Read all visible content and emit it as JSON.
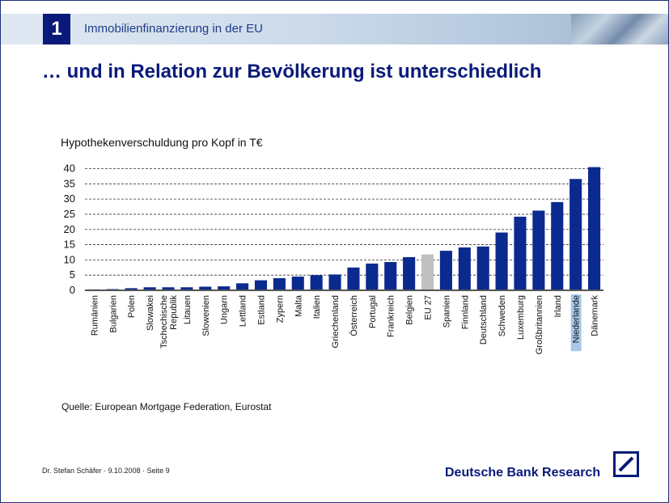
{
  "header": {
    "chapter_number": "1",
    "section_title": "Immobilienfinanzierung in der EU"
  },
  "main_title": "… und in Relation zur Bevölkerung ist unterschiedlich",
  "chart_data": {
    "type": "bar",
    "title": "Hypothekenverschuldung pro Kopf in T€",
    "xlabel": "",
    "ylabel": "",
    "categories": [
      "Rumänien",
      "Bulgarien",
      "Polen",
      "Slowakei",
      "Tschechische Republik",
      "Litauen",
      "Slowenien",
      "Ungarn",
      "Lettland",
      "Estland",
      "Zypern",
      "Malta",
      "Italien",
      "Griechenland",
      "Österreich",
      "Portugal",
      "Frankreich",
      "Belgien",
      "EU 27",
      "Spanien",
      "Finnland",
      "Deutschland",
      "Schweden",
      "Luxemburg",
      "Großbritannien",
      "Irland",
      "Niederlande",
      "Dänemark"
    ],
    "values": [
      0.3,
      0.4,
      0.7,
      1.0,
      1.0,
      1.0,
      1.2,
      1.3,
      2.3,
      3.3,
      4.0,
      4.5,
      5.0,
      5.2,
      7.5,
      8.8,
      9.3,
      10.9,
      11.8,
      13.0,
      14.1,
      14.4,
      19.0,
      24.2,
      26.2,
      29.0,
      36.6,
      40.5
    ],
    "highlight_category": "EU 27",
    "highlight_label": "Niederlande",
    "yticks": [
      0,
      5,
      10,
      15,
      20,
      25,
      30,
      35,
      40
    ],
    "ylim": [
      0,
      42
    ],
    "grid": true,
    "colors": {
      "bar": "#0b2a8f",
      "highlight_bar": "#c0c0c0",
      "label_highlight_bg": "#a8c8e8"
    }
  },
  "source": "Quelle: European Mortgage Federation, Eurostat",
  "footer": {
    "author_line": "Dr. Stefan Schäfer · 9.10.2008 · Seite 9",
    "brand": "Deutsche Bank Research"
  }
}
